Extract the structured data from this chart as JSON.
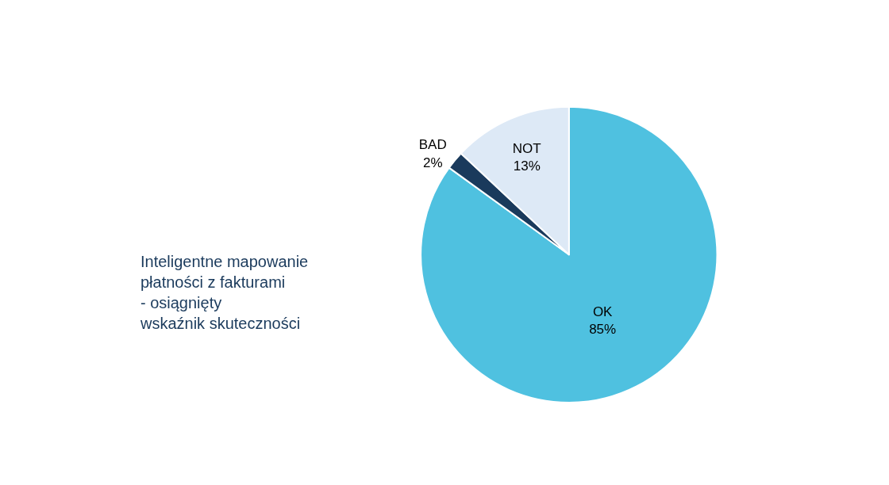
{
  "chart_data": {
    "type": "pie",
    "title": "Inteligentne mapowanie\npłatności z fakturami\n- osiągnięty\nwskaźnik skuteczności",
    "categories": [
      "OK",
      "BAD",
      "NOT"
    ],
    "values": [
      85,
      2,
      13
    ],
    "value_labels": [
      "85%",
      "2%",
      "13%"
    ],
    "colors": [
      "#4fc1e0",
      "#1a3a5c",
      "#dde9f6"
    ],
    "legend": false
  }
}
